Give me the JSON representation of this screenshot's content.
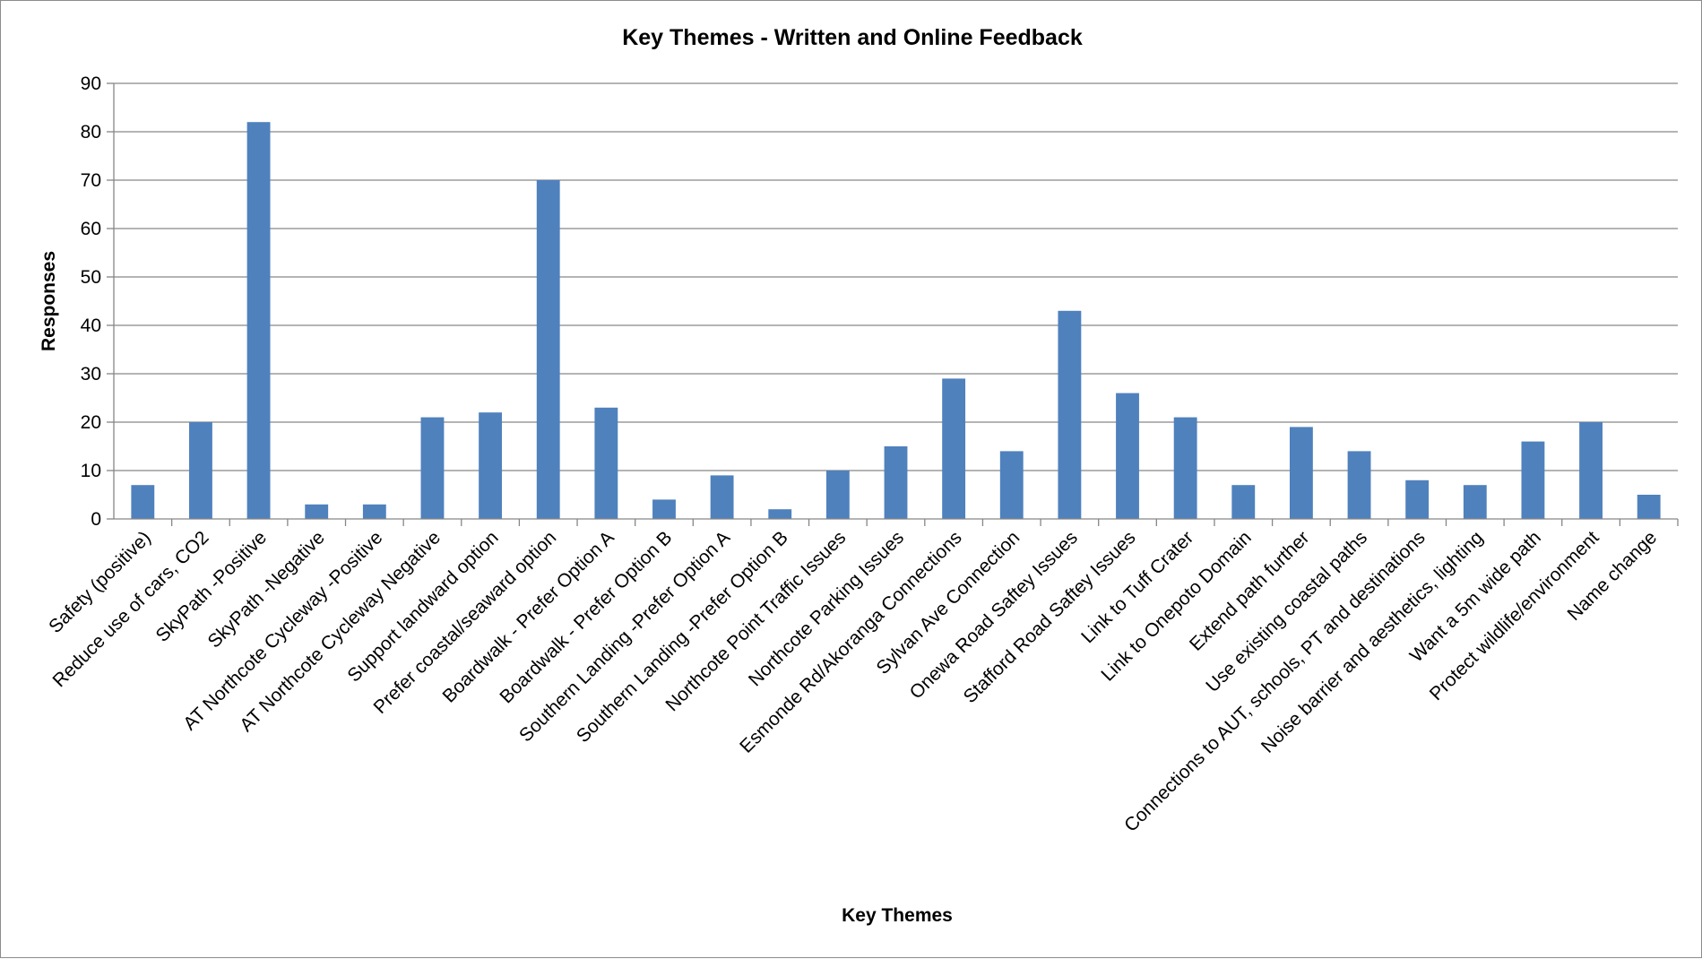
{
  "chart_data": {
    "type": "bar",
    "title": "Key Themes - Written and Online Feedback",
    "xlabel": "Key Themes",
    "ylabel": "Responses",
    "ylim": [
      0,
      90
    ],
    "ytick_step": 10,
    "yticks": [
      "0",
      "10",
      "20",
      "30",
      "40",
      "50",
      "60",
      "70",
      "80",
      "90"
    ],
    "grid": true,
    "legend": "none",
    "bar_color": "#4f81bd",
    "categories": [
      "Safety (positive)",
      "Reduce use of cars, CO2",
      "SkyPath -Positive",
      "SkyPath -Negative",
      "AT Northcote Cycleway -Positive",
      "AT Northcote Cycleway Negative",
      "Support landward option",
      "Prefer coastal/seaward option",
      "Boardwalk - Prefer Option A",
      "Boardwalk - Prefer Option B",
      "Southern Landing -Prefer Option A",
      "Southern Landing -Prefer Option B",
      "Northcote Point Traffic Issues",
      "Northcote  Parking Issues",
      "Esmonde Rd/Akoranga Connections",
      "Sylvan Ave Connection",
      "Onewa Road Saftey Issues",
      "Stafford Road Saftey Issues",
      "Link to Tuff Crater",
      "Link to Onepoto Domain",
      "Extend path further",
      "Use existing coastal paths",
      "Connections to AUT, schools, PT and destinations",
      "Noise barrier and aesthetics, lighting",
      "Want a 5m wide path",
      "Protect wildlife/environment",
      "Name change"
    ],
    "values": [
      7,
      20,
      82,
      3,
      3,
      21,
      22,
      70,
      23,
      4,
      9,
      2,
      10,
      15,
      29,
      14,
      43,
      26,
      21,
      7,
      19,
      14,
      8,
      7,
      16,
      20,
      5
    ]
  }
}
